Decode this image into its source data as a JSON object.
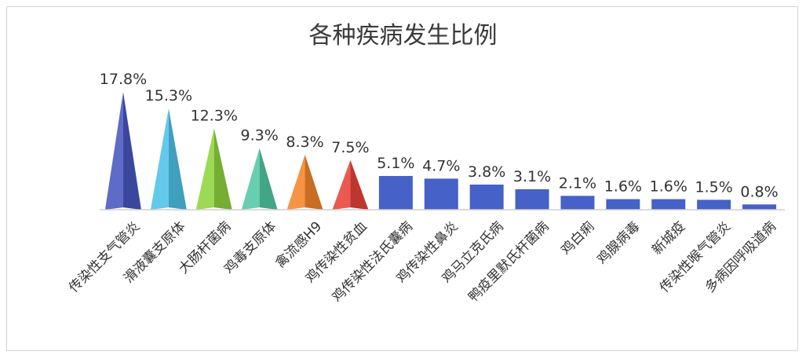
{
  "chart_data": {
    "type": "bar",
    "title": "各种疾病发生比例",
    "categories": [
      "传染性支气管炎",
      "滑液囊支原体",
      "大肠杆菌病",
      "鸡毒支原体",
      "禽流感H9",
      "鸡传染性贫血",
      "鸡传染性法氏囊病",
      "鸡传染性鼻炎",
      "鸡马立克氏病",
      "鸭疫里默氏杆菌病",
      "鸡白痢",
      "鸡腺病毒",
      "新城疫",
      "传染性喉气管炎",
      "多病因呼吸道病"
    ],
    "values": [
      17.8,
      15.3,
      12.3,
      9.3,
      8.3,
      7.5,
      5.1,
      4.7,
      3.8,
      3.1,
      2.1,
      1.6,
      1.6,
      1.5,
      0.8
    ],
    "value_labels": [
      "17.8%",
      "15.3%",
      "12.3%",
      "9.3%",
      "8.3%",
      "7.5%",
      "5.1%",
      "4.7%",
      "3.8%",
      "3.1%",
      "2.1%",
      "1.6%",
      "1.6%",
      "1.5%",
      "0.8%"
    ],
    "colors": [
      "#4857c0",
      "#4ec2ea",
      "#8fd53e",
      "#52c9a4",
      "#f5862a",
      "#e8443a",
      "#4661c7",
      "#4661c7",
      "#4661c7",
      "#4661c7",
      "#4661c7",
      "#4661c7",
      "#4661c7",
      "#4661c7",
      "#4661c7"
    ],
    "mark_shapes": [
      "cone",
      "cone",
      "cone",
      "cone",
      "cone",
      "cone",
      "bar",
      "bar",
      "bar",
      "bar",
      "bar",
      "bar",
      "bar",
      "bar",
      "bar"
    ],
    "ylim": [
      0,
      20
    ],
    "grid": false,
    "legend": "none"
  }
}
